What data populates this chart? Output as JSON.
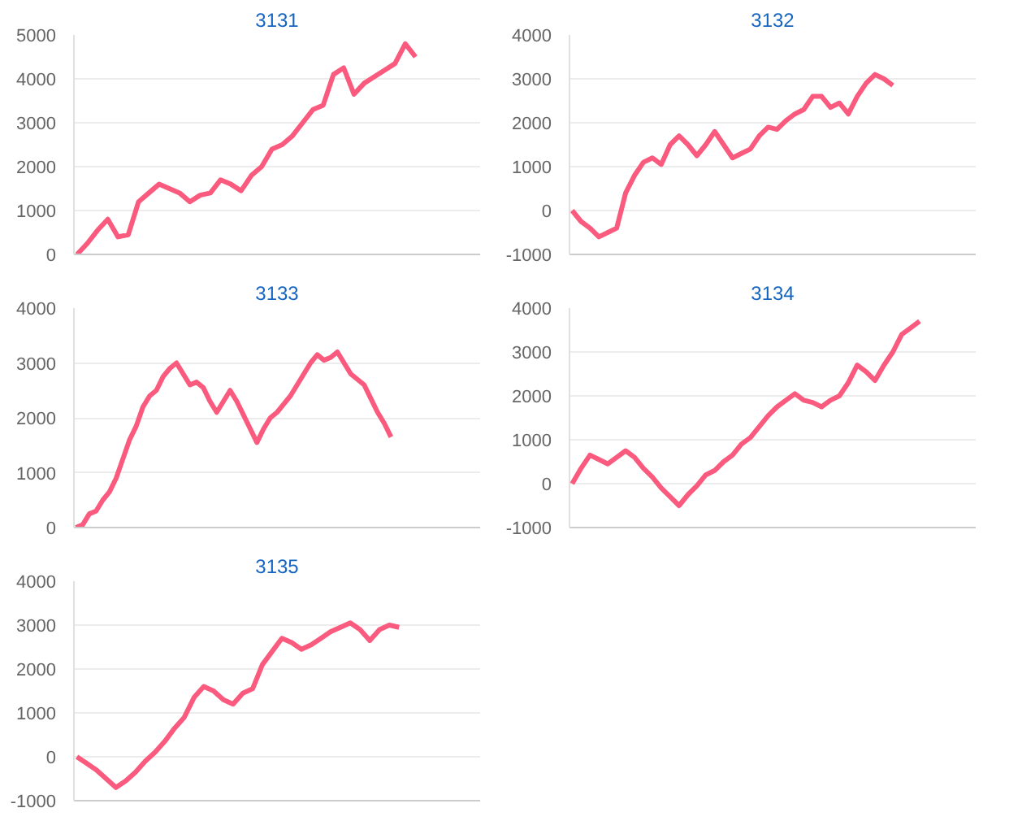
{
  "chart_data": [
    {
      "type": "line",
      "title": "3131",
      "categories": [
        null,
        null,
        null,
        null,
        null,
        null,
        null,
        null,
        null,
        null,
        null,
        null,
        null,
        null,
        null,
        null,
        null,
        null,
        null,
        null,
        null,
        null,
        null,
        null,
        null,
        null,
        null,
        null,
        null,
        null,
        null,
        null,
        null,
        null,
        null,
        null,
        null,
        null,
        null,
        null
      ],
      "values": [
        0,
        250,
        550,
        800,
        400,
        450,
        1200,
        1400,
        1600,
        1500,
        1400,
        1200,
        1350,
        1400,
        1700,
        1600,
        1450,
        1800,
        2000,
        2400,
        2500,
        2700,
        3000,
        3300,
        3400,
        4100,
        4250,
        3650,
        3900,
        4050,
        4200,
        4350,
        4800,
        4500,
        null,
        null,
        null,
        null,
        null,
        null
      ],
      "color": "#fa5a7d",
      "ylim": [
        0,
        5000
      ],
      "yticks": [
        0,
        1000,
        2000,
        3000,
        4000,
        5000
      ],
      "grid": "y",
      "tick_labels": "y"
    },
    {
      "type": "line",
      "title": "3132",
      "categories": [
        null,
        null,
        null,
        null,
        null,
        null,
        null,
        null,
        null,
        null,
        null,
        null,
        null,
        null,
        null,
        null,
        null,
        null,
        null,
        null,
        null,
        null,
        null,
        null,
        null,
        null,
        null,
        null,
        null,
        null,
        null,
        null,
        null,
        null,
        null,
        null,
        null,
        null,
        null,
        null,
        null,
        null,
        null,
        null,
        null,
        null
      ],
      "values": [
        0,
        -250,
        -400,
        -600,
        -500,
        -400,
        400,
        800,
        1100,
        1200,
        1050,
        1500,
        1700,
        1500,
        1250,
        1500,
        1800,
        1500,
        1200,
        1300,
        1400,
        1700,
        1900,
        1850,
        2050,
        2200,
        2300,
        2600,
        2600,
        2350,
        2450,
        2200,
        2600,
        2900,
        3100,
        3000,
        2850,
        null,
        null,
        null,
        null,
        null,
        null,
        null,
        null,
        null
      ],
      "color": "#fa5a7d",
      "ylim": [
        -1000,
        4000
      ],
      "yticks": [
        -1000,
        0,
        1000,
        2000,
        3000,
        4000
      ],
      "grid": "y",
      "tick_labels": "y"
    },
    {
      "type": "line",
      "title": "3133",
      "categories": [
        null,
        null,
        null,
        null,
        null,
        null,
        null,
        null,
        null,
        null,
        null,
        null,
        null,
        null,
        null,
        null,
        null,
        null,
        null,
        null,
        null,
        null,
        null,
        null,
        null,
        null,
        null,
        null,
        null,
        null,
        null,
        null,
        null,
        null,
        null,
        null,
        null,
        null,
        null,
        null,
        null,
        null,
        null,
        null,
        null,
        null,
        null,
        null,
        null,
        null,
        null,
        null,
        null,
        null,
        null,
        null,
        null,
        null,
        null,
        null,
        null
      ],
      "values": [
        0,
        50,
        250,
        300,
        500,
        650,
        900,
        1250,
        1600,
        1850,
        2200,
        2400,
        2500,
        2750,
        2900,
        3000,
        2800,
        2600,
        2650,
        2550,
        2300,
        2100,
        2300,
        2500,
        2300,
        2050,
        1800,
        1550,
        1800,
        2000,
        2100,
        2250,
        2400,
        2600,
        2800,
        3000,
        3150,
        3050,
        3100,
        3200,
        3000,
        2800,
        2700,
        2600,
        2350,
        2100,
        1900,
        1650,
        null,
        null,
        null,
        null,
        null,
        null,
        null,
        null,
        null,
        null,
        null,
        null,
        null
      ],
      "color": "#fa5a7d",
      "ylim": [
        0,
        4000
      ],
      "yticks": [
        0,
        1000,
        2000,
        3000,
        4000
      ],
      "grid": "y",
      "tick_labels": "y"
    },
    {
      "type": "line",
      "title": "3134",
      "categories": [
        null,
        null,
        null,
        null,
        null,
        null,
        null,
        null,
        null,
        null,
        null,
        null,
        null,
        null,
        null,
        null,
        null,
        null,
        null,
        null,
        null,
        null,
        null,
        null,
        null,
        null,
        null,
        null,
        null,
        null,
        null,
        null,
        null,
        null,
        null,
        null,
        null,
        null,
        null,
        null,
        null,
        null,
        null,
        null,
        null,
        null
      ],
      "values": [
        0,
        350,
        650,
        550,
        450,
        600,
        750,
        600,
        350,
        150,
        -100,
        -300,
        -500,
        -250,
        -50,
        200,
        300,
        500,
        650,
        900,
        1050,
        1300,
        1550,
        1750,
        1900,
        2050,
        1900,
        1850,
        1750,
        1900,
        2000,
        2300,
        2700,
        2550,
        2350,
        2700,
        3000,
        3400,
        3550,
        3700,
        null,
        null,
        null,
        null,
        null,
        null
      ],
      "color": "#fa5a7d",
      "ylim": [
        -1000,
        4000
      ],
      "yticks": [
        -1000,
        0,
        1000,
        2000,
        3000,
        4000
      ],
      "grid": "y",
      "tick_labels": "y"
    },
    {
      "type": "line",
      "title": "3135",
      "categories": [
        null,
        null,
        null,
        null,
        null,
        null,
        null,
        null,
        null,
        null,
        null,
        null,
        null,
        null,
        null,
        null,
        null,
        null,
        null,
        null,
        null,
        null,
        null,
        null,
        null,
        null,
        null,
        null,
        null,
        null,
        null,
        null,
        null,
        null,
        null,
        null,
        null,
        null,
        null,
        null,
        null,
        null
      ],
      "values": [
        0,
        -150,
        -300,
        -500,
        -700,
        -550,
        -350,
        -100,
        100,
        350,
        650,
        900,
        1350,
        1600,
        1500,
        1300,
        1200,
        1450,
        1550,
        2100,
        2400,
        2700,
        2600,
        2450,
        2550,
        2700,
        2850,
        2950,
        3050,
        2900,
        2650,
        2900,
        3000,
        2950,
        null,
        null,
        null,
        null,
        null,
        null,
        null,
        null
      ],
      "color": "#fa5a7d",
      "ylim": [
        -1000,
        4000
      ],
      "yticks": [
        -1000,
        0,
        1000,
        2000,
        3000,
        4000
      ],
      "grid": "y",
      "tick_labels": "y"
    }
  ]
}
